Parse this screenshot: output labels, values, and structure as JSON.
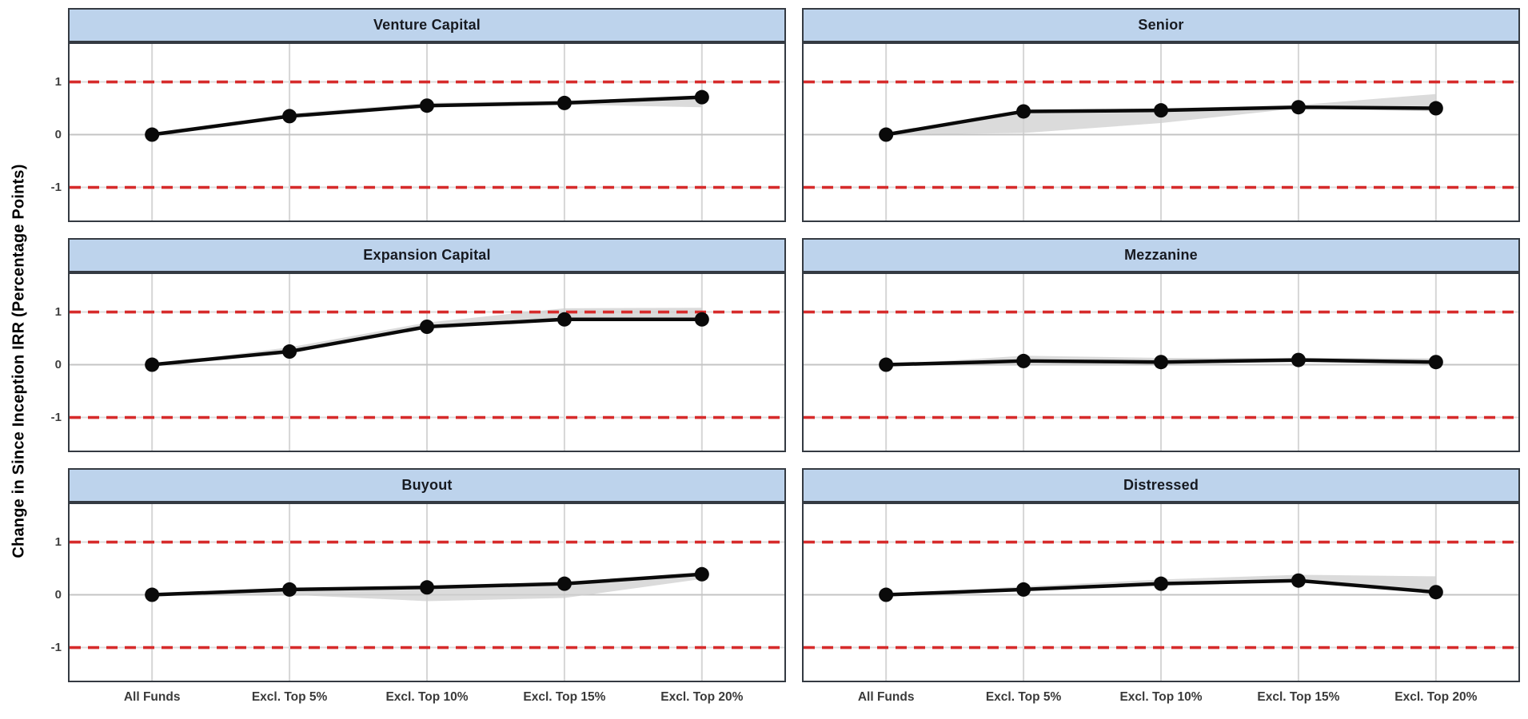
{
  "ylabel": "Change in Since Inception IRR (Percentage Points)",
  "categories": [
    "All Funds",
    "Excl. Top 5%",
    "Excl. Top 10%",
    "Excl. Top 15%",
    "Excl. Top 20%"
  ],
  "y_ticks": [
    "1",
    "0",
    "-1"
  ],
  "colors": {
    "header_fill": "#bdd3ec",
    "header_text": "#171a21",
    "panel_border": "#343a42",
    "grid_vertical": "#d6d6d6",
    "zero_line": "#c4c4c4",
    "ref_underlay": "#dcdcdc",
    "ref_line": "#d62b2b",
    "ribbon": "#cfcfcf",
    "series_line": "#0a0a0a",
    "point": "#0a0a0a",
    "tick_text": "#3f3f3f"
  },
  "chart_data": {
    "type": "line",
    "title": "",
    "xlabel": "",
    "ylabel": "Change in Since Inception IRR (Percentage Points)",
    "categories": [
      "All Funds",
      "Excl. Top 5%",
      "Excl. Top 10%",
      "Excl. Top 15%",
      "Excl. Top 20%"
    ],
    "y_ticks": [
      1,
      0,
      -1
    ],
    "reference_lines": [
      1,
      -1
    ],
    "ylim": [
      -1.63,
      1.72
    ],
    "grid": "vertical-at-categories-plus-zero-line",
    "legend": "none",
    "panels": [
      {
        "title": "Venture Capital",
        "series": [
          {
            "name": "median-change",
            "values": [
              0,
              0.35,
              0.55,
              0.6,
              0.71
            ]
          },
          {
            "name": "band-upper",
            "values": [
              0,
              0.4,
              0.6,
              0.65,
              0.72
            ]
          },
          {
            "name": "band-lower",
            "values": [
              0,
              0.33,
              0.53,
              0.57,
              0.52
            ]
          }
        ]
      },
      {
        "title": "Senior",
        "series": [
          {
            "name": "median-change",
            "values": [
              0,
              0.44,
              0.46,
              0.52,
              0.5
            ]
          },
          {
            "name": "band-upper",
            "values": [
              0,
              0.46,
              0.5,
              0.56,
              0.77
            ]
          },
          {
            "name": "band-lower",
            "values": [
              0,
              0.03,
              0.22,
              0.5,
              0.44
            ]
          }
        ]
      },
      {
        "title": "Expansion Capital",
        "series": [
          {
            "name": "median-change",
            "values": [
              0,
              0.25,
              0.72,
              0.86,
              0.86
            ]
          },
          {
            "name": "band-upper",
            "values": [
              0,
              0.33,
              0.8,
              1.07,
              1.08
            ]
          },
          {
            "name": "band-lower",
            "values": [
              0,
              0.22,
              0.69,
              0.84,
              0.83
            ]
          }
        ]
      },
      {
        "title": "Mezzanine",
        "series": [
          {
            "name": "median-change",
            "values": [
              0,
              0.07,
              0.05,
              0.09,
              0.05
            ]
          },
          {
            "name": "band-upper",
            "values": [
              0,
              0.17,
              0.13,
              0.13,
              0.12
            ]
          },
          {
            "name": "band-lower",
            "values": [
              0,
              0.04,
              0.02,
              0.05,
              0.0
            ]
          }
        ]
      },
      {
        "title": "Buyout",
        "series": [
          {
            "name": "median-change",
            "values": [
              0,
              0.1,
              0.14,
              0.21,
              0.39
            ]
          },
          {
            "name": "band-upper",
            "values": [
              0,
              0.12,
              0.17,
              0.24,
              0.41
            ]
          },
          {
            "name": "band-lower",
            "values": [
              0,
              0.0,
              -0.12,
              -0.06,
              0.3
            ]
          }
        ]
      },
      {
        "title": "Distressed",
        "series": [
          {
            "name": "median-change",
            "values": [
              0,
              0.1,
              0.21,
              0.27,
              0.05
            ]
          },
          {
            "name": "band-upper",
            "values": [
              0,
              0.16,
              0.29,
              0.38,
              0.35
            ]
          },
          {
            "name": "band-lower",
            "values": [
              0,
              0.08,
              0.19,
              0.24,
              0.03
            ]
          }
        ]
      }
    ]
  }
}
